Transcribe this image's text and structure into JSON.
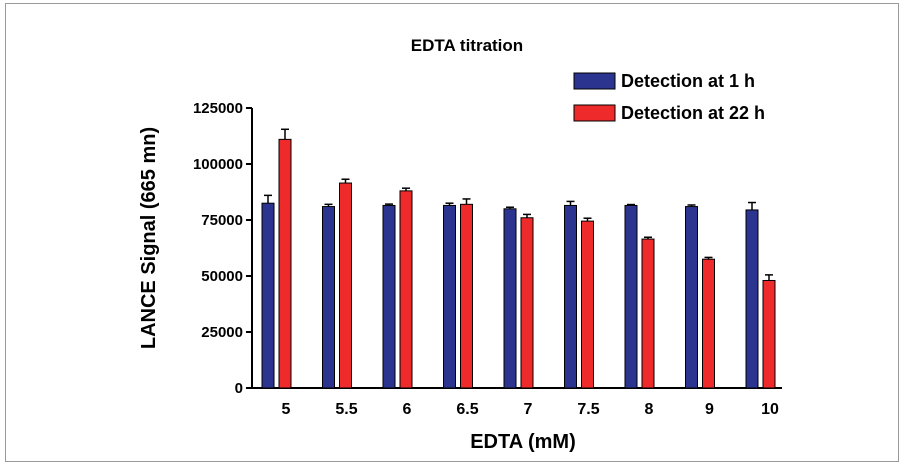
{
  "chart_data": {
    "type": "bar",
    "title": "EDTA titration",
    "xlabel": "EDTA (mM)",
    "ylabel": "LANCE Signal (665 mn)",
    "categories": [
      "5",
      "5.5",
      "6",
      "6.5",
      "7",
      "7.5",
      "8",
      "9",
      "10"
    ],
    "yticks": [
      "0",
      "25000",
      "50000",
      "75000",
      "100000",
      "125000"
    ],
    "ylim": [
      0,
      125000
    ],
    "legend_position": "top-right",
    "grid": false,
    "series": [
      {
        "name": "Detection at 1 h",
        "color": "#2b3590",
        "values": [
          82500,
          81000,
          81500,
          81500,
          80000,
          81500,
          81500,
          81000,
          79500
        ],
        "errors": [
          3500,
          1000,
          600,
          1000,
          700,
          1800,
          400,
          700,
          3300
        ]
      },
      {
        "name": "Detection at 22 h",
        "color": "#ee2a2a",
        "values": [
          111000,
          91500,
          88000,
          82000,
          76000,
          74500,
          66500,
          57500,
          48000
        ],
        "errors": [
          4500,
          1700,
          1200,
          2400,
          1500,
          1300,
          800,
          800,
          2500
        ]
      }
    ]
  }
}
